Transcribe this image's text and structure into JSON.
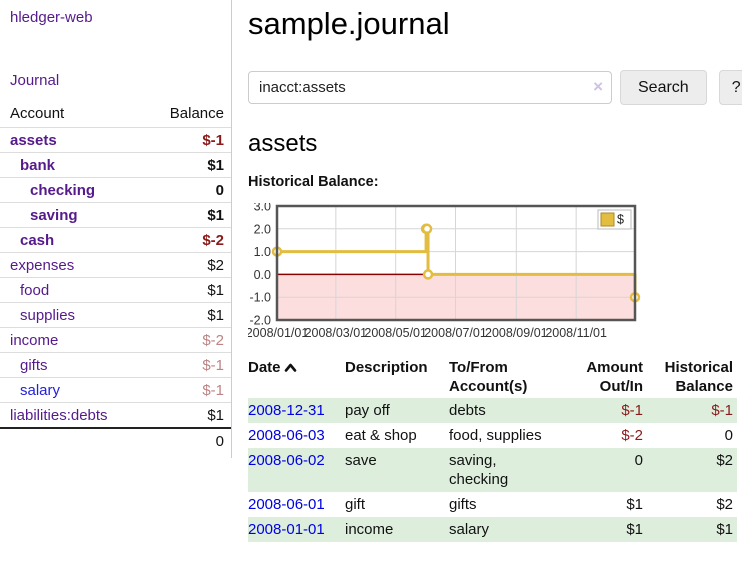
{
  "app": {
    "brand": "hledger-web"
  },
  "sidebar": {
    "journal_link": "Journal",
    "headers": {
      "account": "Account",
      "balance": "Balance"
    },
    "accounts": [
      {
        "name": "assets",
        "balance": "$-1",
        "indent": 0,
        "bold": true,
        "balance_style": "negative"
      },
      {
        "name": "bank",
        "balance": "$1",
        "indent": 1,
        "bold": true,
        "balance_style": ""
      },
      {
        "name": "checking",
        "balance": "0",
        "indent": 2,
        "bold": true,
        "balance_style": ""
      },
      {
        "name": "saving",
        "balance": "$1",
        "indent": 2,
        "bold": true,
        "balance_style": ""
      },
      {
        "name": "cash",
        "balance": "$-2",
        "indent": 1,
        "bold": true,
        "balance_style": "negative"
      },
      {
        "name": "expenses",
        "balance": "$2",
        "indent": 0,
        "bold": false,
        "balance_style": ""
      },
      {
        "name": "food",
        "balance": "$1",
        "indent": 1,
        "bold": false,
        "balance_style": ""
      },
      {
        "name": "supplies",
        "balance": "$1",
        "indent": 1,
        "bold": false,
        "balance_style": ""
      },
      {
        "name": "income",
        "balance": "$-2",
        "indent": 0,
        "bold": false,
        "balance_style": "negative-dim"
      },
      {
        "name": "gifts",
        "balance": "$-1",
        "indent": 1,
        "bold": false,
        "balance_style": "negative-dim"
      },
      {
        "name": "salary",
        "balance": "$-1",
        "indent": 1,
        "bold": false,
        "balance_style": "negative-dim",
        "link_style": "blue"
      },
      {
        "name": "liabilities:debts",
        "balance": "$1",
        "indent": 0,
        "bold": false,
        "balance_style": ""
      }
    ],
    "total": "0"
  },
  "header": {
    "title": "sample.journal"
  },
  "search": {
    "value": "inacct:assets",
    "clear_icon": "×",
    "button_label": "Search",
    "help_label": "?"
  },
  "main": {
    "account_heading": "assets",
    "chart_label": "Historical Balance:"
  },
  "chart_data": {
    "type": "line",
    "step": true,
    "title": "Historical Balance",
    "series": [
      {
        "name": "$",
        "x": [
          "2008-01-01",
          "2008-06-01",
          "2008-06-02",
          "2008-06-03",
          "2008-12-31"
        ],
        "values": [
          1,
          2,
          2,
          0,
          -1
        ]
      }
    ],
    "ylim": [
      -2,
      3
    ],
    "yticks": [
      3.0,
      2.0,
      1.0,
      0.0,
      -1.0,
      -2.0
    ],
    "xticks": [
      "2008/01/01",
      "2008/03/01",
      "2008/05/01",
      "2008/07/01",
      "2008/09/01",
      "2008/11/01"
    ],
    "grid": true,
    "legend": "$",
    "legend_position": "top-right",
    "negative_region_shaded": true
  },
  "register": {
    "headers": {
      "date": "Date",
      "description": "Description",
      "accounts": "To/From Account(s)",
      "amount": "Amount Out/In",
      "balance": "Historical Balance"
    },
    "rows": [
      {
        "date": "2008-12-31",
        "description": "pay off",
        "accounts": "debts",
        "amount": "$-1",
        "balance": "$-1",
        "amount_negative": true,
        "balance_negative": true,
        "highlight": true
      },
      {
        "date": "2008-06-03",
        "description": "eat & shop",
        "accounts": "food, supplies",
        "amount": "$-2",
        "balance": "0",
        "amount_negative": true,
        "balance_negative": false,
        "highlight": false
      },
      {
        "date": "2008-06-02",
        "description": "save",
        "accounts": "saving, checking",
        "amount": "0",
        "balance": "$2",
        "amount_negative": false,
        "balance_negative": false,
        "highlight": true
      },
      {
        "date": "2008-06-01",
        "description": "gift",
        "accounts": "gifts",
        "amount": "$1",
        "balance": "$2",
        "amount_negative": false,
        "balance_negative": false,
        "highlight": false
      },
      {
        "date": "2008-01-01",
        "description": "income",
        "accounts": "salary",
        "amount": "$1",
        "balance": "$1",
        "amount_negative": false,
        "balance_negative": false,
        "highlight": true
      }
    ]
  },
  "colors": {
    "purple_link": "#551a8b",
    "blue_link": "#0000e0",
    "negative": "#8b1a1a",
    "negative_dim": "#bc8484",
    "row_highlight_green": "#ddeedd",
    "chart_line_gold": "#e3bd3f",
    "chart_negative_fill": "#fcdede",
    "chart_zero_line": "#8b0000"
  }
}
